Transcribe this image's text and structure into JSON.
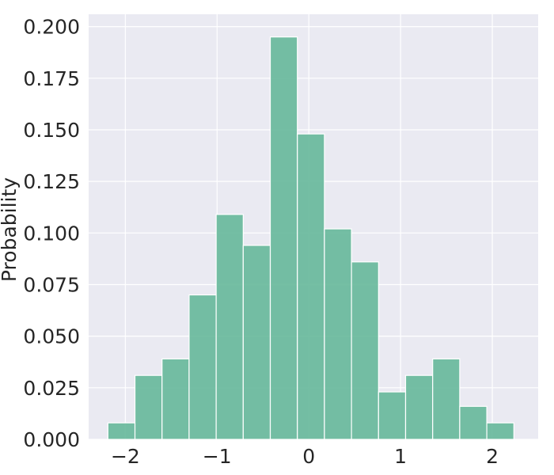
{
  "chart_data": {
    "type": "bar",
    "subtype": "histogram",
    "title": "",
    "xlabel": "",
    "ylabel": "Probability",
    "bar_color": "#66b89a",
    "background_color": "#eaeaf2",
    "grid": true,
    "xlim": [
      -2.4,
      2.5
    ],
    "ylim": [
      0,
      0.206
    ],
    "xticks": [
      -2,
      -1,
      0,
      1,
      2
    ],
    "xtick_labels": [
      "−2",
      "−1",
      "0",
      "1",
      "2"
    ],
    "yticks": [
      0,
      0.025,
      0.05,
      0.075,
      0.1,
      0.125,
      0.15,
      0.175,
      0.2
    ],
    "ytick_labels": [
      "0.000",
      "0.025",
      "0.050",
      "0.075",
      "0.100",
      "0.125",
      "0.150",
      "0.175",
      "0.200"
    ],
    "bin_edges": [
      -2.19,
      -1.895,
      -1.6,
      -1.305,
      -1.01,
      -0.715,
      -0.42,
      -0.125,
      0.17,
      0.465,
      0.76,
      1.055,
      1.35,
      1.645,
      1.94,
      2.235
    ],
    "values": [
      0.008,
      0.031,
      0.039,
      0.07,
      0.109,
      0.094,
      0.195,
      0.148,
      0.102,
      0.086,
      0.023,
      0.031,
      0.039,
      0.016,
      0.008
    ]
  }
}
